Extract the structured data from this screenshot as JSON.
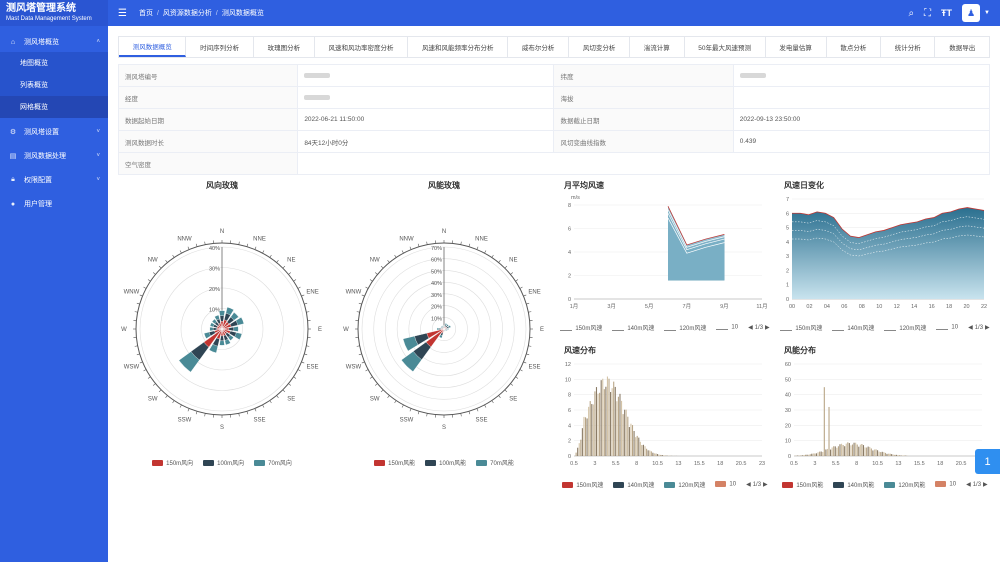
{
  "app": {
    "title_cn": "测风塔管理系统",
    "title_en": "Mast Data Management System"
  },
  "sidebar": {
    "items": [
      {
        "label": "测风塔概览",
        "icon": "home-icon"
      },
      {
        "label": "测风塔设置",
        "icon": "gear-icon"
      },
      {
        "label": "测风数据处理",
        "icon": "document-icon"
      },
      {
        "label": "权限配置",
        "icon": "lock-icon"
      },
      {
        "label": "用户管理",
        "icon": "user-icon"
      }
    ],
    "subitems": [
      "地图概览",
      "列表概览",
      "网格概览"
    ]
  },
  "topbar": {
    "breadcrumb": [
      "首页",
      "风资源数据分析",
      "测风数据概览"
    ],
    "menu_icon": "hamburger-icon",
    "tools": [
      "search-icon",
      "fullscreen-icon",
      "font-size-icon"
    ]
  },
  "tabs": [
    "测风数据概览",
    "时间序列分析",
    "玫瑰图分析",
    "风速和风功率密度分析",
    "风速和风能频率分布分析",
    "威布尔分析",
    "风切变分析",
    "湍流计算",
    "50年最大风速预测",
    "发电量估算",
    "散点分析",
    "统计分析",
    "数据导出"
  ],
  "active_tab": 0,
  "info": {
    "r1": {
      "k1": "测风塔编号",
      "v1": "",
      "k2": "纬度",
      "v2": ""
    },
    "r2": {
      "k1": "经度",
      "v1": "",
      "k2": "海拔",
      "v2": ""
    },
    "r3": {
      "k1": "数据起始日期",
      "v1": "2022-06-21 11:50:00",
      "k2": "数据截止日期",
      "v2": "2022-09-13 23:50:00"
    },
    "r4": {
      "k1": "测风数据时长",
      "v1": "84天12小时0分",
      "k2": "风切变曲线指数",
      "v2": "0.439"
    },
    "r5": {
      "k1": "空气密度",
      "v1": ""
    }
  },
  "wind_rose": {
    "title": "风向玫瑰",
    "directions": [
      "N",
      "NNE",
      "NE",
      "ENE",
      "E",
      "ESE",
      "SE",
      "SSE",
      "S",
      "SSW",
      "SW",
      "WSW",
      "W",
      "WNW",
      "NW",
      "NNW"
    ],
    "ticks": [
      "40%",
      "30%",
      "20%",
      "10%"
    ],
    "legend": [
      "150m风向",
      "100m风向",
      "70m风向"
    ],
    "colors": [
      "#c23531",
      "#2f4554",
      "#4a8a96"
    ],
    "values_pct": [
      9,
      11,
      10,
      11,
      8,
      10,
      7,
      8,
      8,
      12,
      26,
      9,
      6,
      6,
      6,
      7
    ]
  },
  "energy_rose": {
    "title": "风能玫瑰",
    "directions": [
      "N",
      "NNE",
      "NE",
      "ENE",
      "E",
      "ESE",
      "SE",
      "SSE",
      "S",
      "SSW",
      "SW",
      "WSW",
      "W",
      "WNW",
      "NW",
      "NNW"
    ],
    "ticks": [
      "70%",
      "60%",
      "50%",
      "40%",
      "30%",
      "20%",
      "10%"
    ],
    "legend": [
      "150m风能",
      "100m风能",
      "70m风能"
    ],
    "colors": [
      "#c23531",
      "#2f4554",
      "#4a8a96"
    ],
    "values_pct": [
      3,
      5,
      5,
      6,
      4,
      3,
      2,
      2,
      2,
      8,
      45,
      36,
      6,
      3,
      3,
      3
    ]
  },
  "monthly_speed": {
    "title": "月平均风速",
    "unit": "m/s",
    "x_labels": [
      "1月",
      "3月",
      "5月",
      "7月",
      "9月",
      "11月"
    ],
    "y_labels": [
      "0",
      "2",
      "4",
      "6",
      "8"
    ],
    "legend": [
      "150m风速",
      "140m风速",
      "120m风速",
      "10"
    ],
    "pager": "1/3",
    "series_months": [
      "6月",
      "7月",
      "8月",
      "9月"
    ],
    "series_values": [
      [
        7.9,
        4.6,
        5.1,
        5.5
      ],
      [
        7.6,
        4.4,
        4.9,
        5.3
      ],
      [
        7.3,
        4.2,
        4.7,
        5.1
      ],
      [
        6.9,
        3.9,
        4.4,
        4.8
      ]
    ]
  },
  "daily_speed": {
    "title": "风速日变化",
    "x_labels": [
      "00",
      "02",
      "04",
      "06",
      "08",
      "10",
      "12",
      "14",
      "16",
      "18",
      "20",
      "22"
    ],
    "y_labels": [
      "0",
      "1",
      "2",
      "3",
      "4",
      "5",
      "6",
      "7"
    ],
    "legend": [
      "150m风速",
      "140m风速",
      "120m风速",
      "10"
    ],
    "pager": "1/3",
    "values_150m": [
      6.0,
      6.0,
      5.9,
      6.1,
      6.0,
      5.7,
      4.9,
      4.4,
      4.3,
      4.5,
      4.7,
      4.8,
      5.0,
      5.2,
      5.3,
      5.4,
      5.6,
      5.7,
      6.0,
      6.1,
      6.3,
      6.4,
      6.3,
      6.2
    ]
  },
  "speed_dist": {
    "title": "风速分布",
    "x_labels": [
      "0.5",
      "3",
      "5.5",
      "8",
      "10.5",
      "13",
      "15.5",
      "18",
      "20.5",
      "23"
    ],
    "y_labels": [
      "0",
      "2",
      "4",
      "6",
      "8",
      "10",
      "12"
    ],
    "legend": [
      "150m风速",
      "140m风速",
      "120m风速",
      "10"
    ],
    "pager": "1/3"
  },
  "energy_dist": {
    "title": "风能分布",
    "x_labels": [
      "0.5",
      "3",
      "5.5",
      "8",
      "10.5",
      "13",
      "15.5",
      "18",
      "20.5",
      "23"
    ],
    "y_labels": [
      "0",
      "10",
      "20",
      "30",
      "40",
      "50",
      "60"
    ],
    "legend": [
      "150m风能",
      "140m风能",
      "120m风能",
      "10"
    ],
    "pager": "1/3"
  },
  "float_button": "1"
}
